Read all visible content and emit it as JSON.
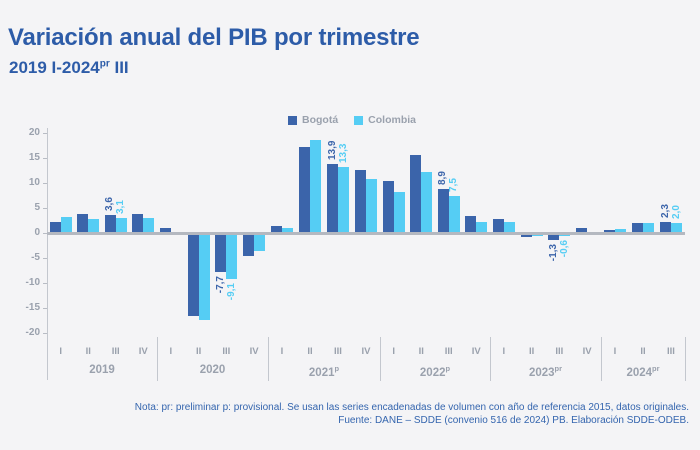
{
  "header": {
    "title": "Variación anual del PIB por trimestre",
    "subtitle_text": "2019 I-2024",
    "subtitle_sup": "pr",
    "subtitle_suffix": " III"
  },
  "legend": {
    "items": [
      {
        "label": "Bogotá",
        "color": "#3b64aa"
      },
      {
        "label": "Colombia",
        "color": "#55cdf4"
      }
    ]
  },
  "chart_data": {
    "type": "bar",
    "title": "Variación anual del PIB por trimestre",
    "subtitle": "2019 I-2024pr III",
    "xlabel": "",
    "ylabel": "",
    "ylim": [
      -20,
      20
    ],
    "yticks": [
      20,
      15,
      10,
      5,
      0,
      -5,
      -10,
      -15,
      -20
    ],
    "grid": false,
    "legend_position": "top-center",
    "series_names": [
      "Bogotá",
      "Colombia"
    ],
    "colors": {
      "bogota": "#3b64aa",
      "colombia": "#55cdf4"
    },
    "groups": [
      {
        "year": "2019",
        "sup": "",
        "quarters": [
          "I",
          "II",
          "III",
          "IV"
        ],
        "bogota": [
          2.3,
          3.8,
          3.6,
          3.8
        ],
        "colombia": [
          3.3,
          2.8,
          3.1,
          3.0
        ],
        "bogota_labels": [
          "",
          "",
          "3,6",
          ""
        ],
        "colombia_labels": [
          "",
          "",
          "3,1",
          ""
        ]
      },
      {
        "year": "2020",
        "sup": "",
        "quarters": [
          "I",
          "II",
          "III",
          "IV"
        ],
        "bogota": [
          1.0,
          -16.6,
          -7.7,
          -4.5
        ],
        "colombia": [
          0.3,
          -17.3,
          -9.1,
          -3.5
        ],
        "bogota_labels": [
          "",
          "",
          "-7,7",
          ""
        ],
        "colombia_labels": [
          "",
          "",
          "-9,1",
          ""
        ]
      },
      {
        "year": "2021",
        "sup": "p",
        "quarters": [
          "I",
          "II",
          "III",
          "IV"
        ],
        "bogota": [
          1.5,
          17.3,
          13.9,
          12.6
        ],
        "colombia": [
          1.0,
          18.7,
          13.3,
          10.8
        ],
        "bogota_labels": [
          "",
          "",
          "13,9",
          ""
        ],
        "colombia_labels": [
          "",
          "",
          "13,3",
          ""
        ]
      },
      {
        "year": "2022",
        "sup": "p",
        "quarters": [
          "I",
          "II",
          "III",
          "IV"
        ],
        "bogota": [
          10.5,
          15.7,
          8.9,
          3.4
        ],
        "colombia": [
          8.2,
          12.2,
          7.5,
          2.2
        ],
        "bogota_labels": [
          "",
          "",
          "8,9",
          ""
        ],
        "colombia_labels": [
          "",
          "",
          "7,5",
          ""
        ]
      },
      {
        "year": "2023",
        "sup": "pr",
        "quarters": [
          "I",
          "II",
          "III",
          "IV"
        ],
        "bogota": [
          2.8,
          -0.8,
          -1.3,
          1.1
        ],
        "colombia": [
          2.3,
          -0.5,
          -0.6,
          0.3
        ],
        "bogota_labels": [
          "",
          "",
          "-1,3",
          ""
        ],
        "colombia_labels": [
          "",
          "",
          "-0,6",
          ""
        ]
      },
      {
        "year": "2024",
        "sup": "pr",
        "quarters": [
          "I",
          "II",
          "III"
        ],
        "bogota": [
          0.6,
          2.0,
          2.3
        ],
        "colombia": [
          0.8,
          2.1,
          2.0
        ],
        "bogota_labels": [
          "",
          "",
          "2,3"
        ],
        "colombia_labels": [
          "",
          "",
          "2,0"
        ]
      }
    ]
  },
  "footer": {
    "line1": "Nota: pr: preliminar p: provisional.  Se usan las series encadenadas de volumen con año de referencia 2015, datos originales.",
    "line2": "Fuente: DANE – SDDE (convenio 516 de 2024) PB. Elaboración SDDE-ODEB."
  }
}
